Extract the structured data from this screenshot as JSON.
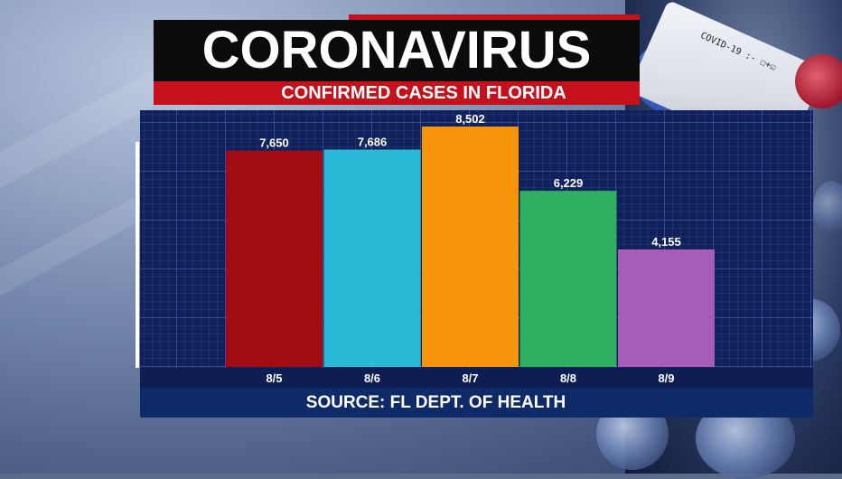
{
  "header": {
    "title": "CORONAVIRUS",
    "subtitle": "CONFIRMED CASES IN FLORIDA"
  },
  "footer": {
    "source": "SOURCE: FL DEPT. OF HEALTH"
  },
  "background": {
    "vial_label": "COVID-19 :- ☐+☑"
  },
  "colors": {
    "title_bg": "#0b0b0b",
    "accent_red": "#c4111b",
    "panel_bg": "#10205a"
  },
  "chart_data": {
    "type": "bar",
    "categories": [
      "8/5",
      "8/6",
      "8/7",
      "8/8",
      "8/9"
    ],
    "values": [
      7650,
      7686,
      8502,
      6229,
      4155
    ],
    "value_labels": [
      "7,650",
      "7,686",
      "8,502",
      "6,229",
      "4,155"
    ],
    "bar_colors": [
      "#a30b13",
      "#2ab9d6",
      "#f7940a",
      "#2fb061",
      "#a65cb8"
    ],
    "grid": true,
    "legend": "none"
  }
}
